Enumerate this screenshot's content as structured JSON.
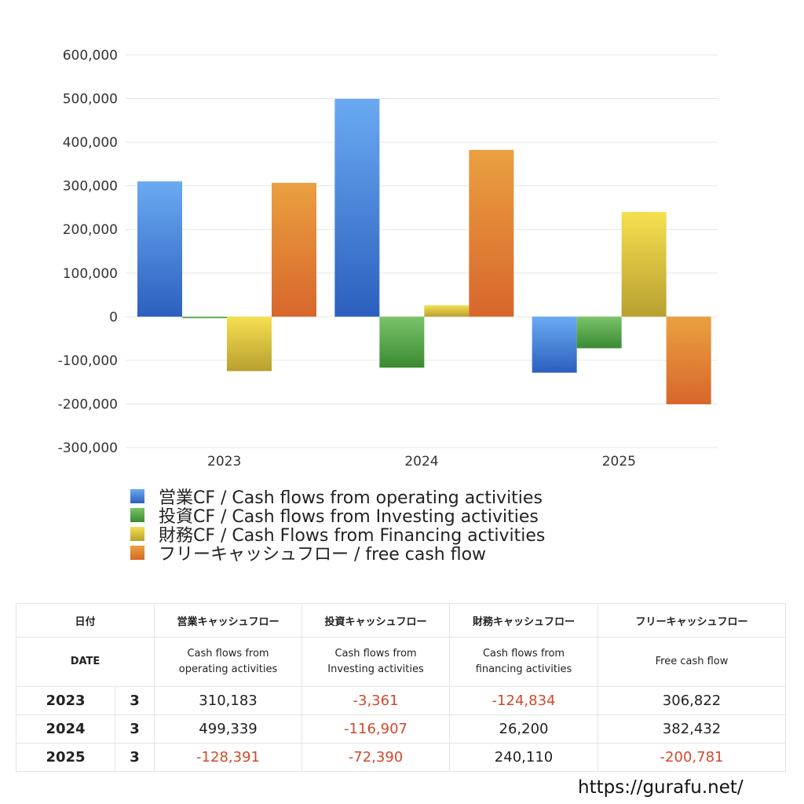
{
  "chart_data": {
    "type": "bar",
    "categories": [
      "2023",
      "2024",
      "2025"
    ],
    "ylim": [
      -300000,
      600000
    ],
    "yticks": [
      600000,
      500000,
      400000,
      300000,
      200000,
      100000,
      0,
      -100000,
      -200000,
      -300000
    ],
    "ytick_labels": [
      "600,000",
      "500,000",
      "400,000",
      "300,000",
      "200,000",
      "100,000",
      "0",
      "-100,000",
      "-200,000",
      "-300,000"
    ],
    "grid": true,
    "legend_position": "bottom",
    "series": [
      {
        "name": "営業CF / Cash flows from operating activities",
        "values": [
          310183,
          499339,
          -128391
        ],
        "color_top": "#6aaaf2",
        "color_bottom": "#2c5fbe"
      },
      {
        "name": "投資CF / Cash flows from Investing activities",
        "values": [
          -3361,
          -116907,
          -72390
        ],
        "color_top": "#7ac36a",
        "color_bottom": "#3a8a32"
      },
      {
        "name": "財務CF / Cash Flows from Financing activities",
        "values": [
          -124834,
          26200,
          240110
        ],
        "color_top": "#f5e050",
        "color_bottom": "#b8a030"
      },
      {
        "name": "フリーキャッシュフロー / free cash flow",
        "values": [
          306822,
          382432,
          -200781
        ],
        "color_top": "#eaa040",
        "color_bottom": "#d8662c"
      }
    ]
  },
  "table": {
    "header_jp": {
      "date": "日付",
      "operating": "営業キャッシュフロー",
      "investing": "投資キャッシュフロー",
      "financing": "財務キャッシュフロー",
      "free": "フリーキャッシュフロー"
    },
    "header_en": {
      "date": "DATE",
      "operating_1": "Cash flows from",
      "operating_2": "operating activities",
      "investing_1": "Cash flows from",
      "investing_2": "Investing activities",
      "financing_1": "Cash flows from",
      "financing_2": "financing activities",
      "free": "Free cash flow"
    },
    "rows": [
      {
        "year": "2023",
        "month": "3",
        "operating": "310,183",
        "investing": "-3,361",
        "financing": "-124,834",
        "free": "306,822"
      },
      {
        "year": "2024",
        "month": "3",
        "operating": "499,339",
        "investing": "-116,907",
        "financing": "26,200",
        "free": "382,432"
      },
      {
        "year": "2025",
        "month": "3",
        "operating": "-128,391",
        "investing": "-72,390",
        "financing": "240,110",
        "free": "-200,781"
      }
    ]
  },
  "footer": {
    "url": "https://gurafu.net/"
  }
}
